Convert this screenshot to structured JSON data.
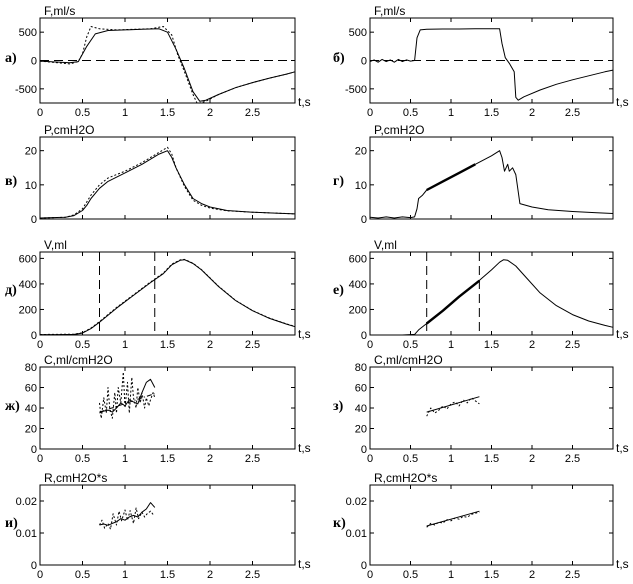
{
  "chart_data": [
    {
      "id": "a",
      "type": "line",
      "panel_label": "а)",
      "ylabel": "F,ml/s",
      "xlabel": "t,s",
      "xlim": [
        0,
        3
      ],
      "ylim": [
        -750,
        750
      ],
      "xticks": [
        "0",
        "0.5",
        "1",
        "1.5",
        "2",
        "2.5"
      ],
      "yticks": [
        500,
        0,
        -500
      ],
      "ytick_labels": [
        "500",
        "0",
        "-500"
      ],
      "dashed_hline": 0,
      "series": [
        {
          "style": "solid",
          "x": [
            0,
            0.35,
            0.45,
            0.55,
            0.65,
            0.8,
            1.0,
            1.2,
            1.4,
            1.5,
            1.6,
            1.7,
            1.8,
            1.88,
            1.95,
            2.1,
            2.3,
            2.5,
            2.7,
            2.9,
            3.0
          ],
          "y": [
            -10,
            -40,
            -20,
            250,
            470,
            530,
            540,
            550,
            560,
            500,
            200,
            -150,
            -550,
            -720,
            -700,
            -600,
            -480,
            -390,
            -310,
            -240,
            -200
          ]
        },
        {
          "style": "dotted",
          "x": [
            0,
            0.35,
            0.45,
            0.5,
            0.55,
            0.6,
            0.7,
            0.9,
            1.1,
            1.3,
            1.45,
            1.55,
            1.62,
            1.7,
            1.8,
            1.85,
            1.95,
            2.1,
            2.3,
            2.5,
            2.7,
            2.9,
            3.0
          ],
          "y": [
            -10,
            -60,
            -20,
            120,
            420,
            600,
            560,
            540,
            550,
            560,
            600,
            450,
            100,
            -200,
            -600,
            -760,
            -720,
            -600,
            -480,
            -390,
            -310,
            -240,
            -200
          ]
        }
      ]
    },
    {
      "id": "b",
      "type": "line",
      "panel_label": "б)",
      "ylabel": "F,ml/s",
      "xlabel": "t,s",
      "xlim": [
        0,
        3
      ],
      "ylim": [
        -750,
        750
      ],
      "xticks": [
        "0",
        "0.5",
        "1",
        "1.5",
        "2",
        "2.5"
      ],
      "yticks": [
        500,
        0,
        -500
      ],
      "ytick_labels": [
        "500",
        "0",
        "-500"
      ],
      "dashed_hline": 0,
      "series": [
        {
          "style": "solid",
          "x": [
            0,
            0.05,
            0.1,
            0.15,
            0.2,
            0.25,
            0.3,
            0.35,
            0.4,
            0.45,
            0.5,
            0.55,
            0.58,
            0.62,
            0.7,
            0.9,
            1.1,
            1.3,
            1.5,
            1.6,
            1.63,
            1.67,
            1.72,
            1.78,
            1.8,
            1.83,
            1.9,
            2.1,
            2.3,
            2.5,
            2.7,
            2.9,
            3.0
          ],
          "y": [
            -20,
            10,
            -30,
            20,
            -20,
            10,
            -30,
            20,
            -20,
            10,
            -10,
            0,
            400,
            540,
            550,
            555,
            555,
            560,
            560,
            560,
            300,
            50,
            -50,
            -200,
            -650,
            -700,
            -640,
            -520,
            -420,
            -340,
            -270,
            -200,
            -170
          ]
        }
      ]
    },
    {
      "id": "v",
      "type": "line",
      "panel_label": "в)",
      "ylabel": "P,cmH2O",
      "xlabel": "",
      "xlim": [
        0,
        3
      ],
      "ylim": [
        0,
        24
      ],
      "xticks": [],
      "yticks": [
        20,
        10,
        0
      ],
      "ytick_labels": [
        "20",
        "10",
        "0"
      ],
      "series": [
        {
          "style": "solid",
          "x": [
            0,
            0.3,
            0.4,
            0.5,
            0.55,
            0.6,
            0.7,
            0.8,
            1.0,
            1.2,
            1.4,
            1.5,
            1.55,
            1.6,
            1.7,
            1.8,
            1.9,
            2.0,
            2.2,
            2.5,
            2.8,
            3.0
          ],
          "y": [
            0.3,
            0.5,
            1,
            2.5,
            4,
            6,
            9,
            11,
            13.5,
            16,
            19,
            20,
            18,
            15,
            10,
            6,
            4.5,
            3.5,
            2.5,
            2,
            1.7,
            1.5
          ]
        },
        {
          "style": "dotted",
          "x": [
            0,
            0.3,
            0.4,
            0.5,
            0.55,
            0.6,
            0.7,
            0.8,
            1.0,
            1.2,
            1.4,
            1.5,
            1.55,
            1.6,
            1.7,
            1.8,
            1.9,
            2.0,
            2.2,
            2.5,
            2.8,
            3.0
          ],
          "y": [
            0.3,
            0.5,
            1.2,
            3,
            5,
            7,
            10,
            12,
            14,
            16.5,
            19.5,
            21,
            19,
            15,
            9.5,
            5.5,
            4,
            3.2,
            2.4,
            2,
            1.7,
            1.5
          ]
        }
      ]
    },
    {
      "id": "g",
      "type": "line",
      "panel_label": "г)",
      "ylabel": "P,cmH2O",
      "xlabel": "",
      "xlim": [
        0,
        3
      ],
      "ylim": [
        0,
        24
      ],
      "xticks": [],
      "yticks": [
        20,
        10,
        0
      ],
      "ytick_labels": [
        "20",
        "10",
        "0"
      ],
      "series": [
        {
          "style": "solid",
          "x": [
            0,
            0.1,
            0.2,
            0.3,
            0.4,
            0.5,
            0.55,
            0.58,
            0.6,
            0.65,
            0.7,
            0.9,
            1.1,
            1.3,
            1.5,
            1.6,
            1.63,
            1.66,
            1.7,
            1.72,
            1.76,
            1.8,
            1.85,
            2.0,
            2.2,
            2.5,
            2.8,
            3.0
          ],
          "y": [
            0.5,
            0.3,
            0.6,
            0.3,
            0.6,
            0.4,
            0.6,
            3,
            6,
            7,
            8.5,
            11,
            13.5,
            16,
            18.5,
            20,
            18,
            14,
            16,
            14,
            15,
            13,
            4.5,
            3.5,
            2.7,
            2.2,
            1.8,
            1.6
          ]
        },
        {
          "style": "bold",
          "x": [
            0.7,
            0.9,
            1.1,
            1.3
          ],
          "y": [
            8.5,
            11,
            13.5,
            16
          ]
        }
      ]
    },
    {
      "id": "d",
      "type": "line",
      "panel_label": "д)",
      "ylabel": "V,ml",
      "xlabel": "t,s",
      "xlim": [
        0,
        3
      ],
      "ylim": [
        0,
        650
      ],
      "xticks": [
        "0",
        "0.5",
        "1",
        "1.5",
        "2",
        "2.5"
      ],
      "yticks": [
        600,
        400,
        200,
        0
      ],
      "ytick_labels": [
        "600",
        "400",
        "200",
        "0"
      ],
      "dashed_vlines": [
        0.7,
        1.35
      ],
      "series": [
        {
          "style": "solid",
          "x": [
            0,
            0.2,
            0.4,
            0.5,
            0.6,
            0.7,
            0.9,
            1.1,
            1.3,
            1.45,
            1.55,
            1.65,
            1.7,
            1.8,
            1.9,
            2.1,
            2.3,
            2.5,
            2.7,
            2.9,
            3.0
          ],
          "y": [
            3,
            3,
            5,
            15,
            50,
            100,
            210,
            310,
            410,
            480,
            550,
            585,
            590,
            560,
            510,
            380,
            270,
            190,
            130,
            85,
            65
          ]
        },
        {
          "style": "dotted",
          "x": [
            0,
            0.4,
            0.5,
            0.6,
            0.7,
            0.9,
            1.1,
            1.3,
            1.45,
            1.55,
            1.65,
            1.7,
            1.8,
            1.9,
            2.1,
            2.3,
            2.5,
            2.7,
            2.9,
            3.0
          ],
          "y": [
            4,
            6,
            18,
            55,
            105,
            215,
            315,
            415,
            485,
            555,
            588,
            592,
            562,
            512,
            382,
            272,
            192,
            132,
            87,
            67
          ]
        }
      ]
    },
    {
      "id": "e",
      "type": "line",
      "panel_label": "е)",
      "ylabel": "V,ml",
      "xlabel": "t,s",
      "xlim": [
        0,
        3
      ],
      "ylim": [
        0,
        650
      ],
      "xticks": [
        "0",
        "0.5",
        "1",
        "1.5",
        "2",
        "2.5"
      ],
      "yticks": [
        600,
        400,
        200,
        0
      ],
      "ytick_labels": [
        "600",
        "400",
        "200",
        "0"
      ],
      "dashed_vlines": [
        0.7,
        1.35
      ],
      "series": [
        {
          "style": "solid",
          "x": [
            0,
            0.2,
            0.4,
            0.55,
            0.6,
            0.7,
            0.9,
            1.1,
            1.3,
            1.5,
            1.6,
            1.65,
            1.7,
            1.8,
            1.9,
            2.1,
            2.3,
            2.5,
            2.7,
            2.9,
            3.0
          ],
          "y": [
            0,
            0,
            0,
            5,
            40,
            90,
            190,
            300,
            400,
            510,
            570,
            590,
            585,
            540,
            470,
            330,
            230,
            160,
            110,
            75,
            60
          ]
        },
        {
          "style": "bold",
          "x": [
            0.7,
            0.9,
            1.1,
            1.35
          ],
          "y": [
            90,
            190,
            300,
            425
          ]
        }
      ]
    },
    {
      "id": "zh",
      "type": "line",
      "panel_label": "ж)",
      "ylabel": "C,ml/cmH2O",
      "xlabel": "t,s",
      "xlim": [
        0,
        3
      ],
      "ylim": [
        0,
        80
      ],
      "xticks": [
        "0",
        "0.5",
        "1",
        "1.5",
        "2",
        "2.5"
      ],
      "yticks": [
        80,
        60,
        40,
        20,
        0
      ],
      "ytick_labels": [
        "80",
        "60",
        "40",
        "20",
        "0"
      ],
      "series": [
        {
          "style": "solid",
          "x": [
            0.7,
            0.75,
            0.8,
            0.85,
            0.9,
            0.95,
            1.0,
            1.05,
            1.1,
            1.15,
            1.2,
            1.25,
            1.3,
            1.35
          ],
          "y": [
            35,
            37,
            38,
            36,
            40,
            45,
            42,
            48,
            46,
            44,
            55,
            65,
            68,
            60
          ]
        },
        {
          "style": "dotted",
          "x": [
            0.7,
            0.72,
            0.75,
            0.78,
            0.8,
            0.82,
            0.85,
            0.88,
            0.9,
            0.92,
            0.95,
            0.98,
            1.0,
            1.03,
            1.05,
            1.08,
            1.1,
            1.13,
            1.15,
            1.18,
            1.2,
            1.23,
            1.25,
            1.28,
            1.3,
            1.33,
            1.35
          ],
          "y": [
            45,
            30,
            50,
            35,
            60,
            40,
            30,
            55,
            35,
            60,
            45,
            75,
            40,
            65,
            35,
            70,
            50,
            40,
            60,
            45,
            55,
            40,
            50,
            42,
            48,
            55,
            50
          ]
        },
        {
          "style": "dashdot",
          "x": [
            0.7,
            1.35
          ],
          "y": [
            36,
            54
          ]
        }
      ]
    },
    {
      "id": "z",
      "type": "line",
      "panel_label": "з)",
      "ylabel": "C,ml/cmH2O",
      "xlabel": "t,s",
      "xlim": [
        0,
        3
      ],
      "ylim": [
        0,
        80
      ],
      "xticks": [
        "0",
        "0.5",
        "1",
        "1.5",
        "2",
        "2.5"
      ],
      "yticks": [
        80,
        60,
        40,
        20,
        0
      ],
      "ytick_labels": [
        "80",
        "60",
        "40",
        "20",
        "0"
      ],
      "series": [
        {
          "style": "solid",
          "x": [
            0.7,
            1.35
          ],
          "y": [
            36,
            51
          ]
        },
        {
          "style": "dotted",
          "x": [
            0.7,
            0.75,
            0.8,
            0.85,
            0.9,
            0.95,
            1.0,
            1.05,
            1.1,
            1.15,
            1.2,
            1.25,
            1.3,
            1.35
          ],
          "y": [
            32,
            40,
            35,
            38,
            42,
            39,
            44,
            46,
            42,
            48,
            45,
            50,
            47,
            44
          ]
        }
      ]
    },
    {
      "id": "i",
      "type": "line",
      "panel_label": "и)",
      "ylabel": "R,cmH2O*s",
      "xlabel": "t,s",
      "xlim": [
        0,
        3
      ],
      "ylim": [
        0,
        0.025
      ],
      "xticks": [
        "0",
        "0.5",
        "1",
        "1.5",
        "2",
        "2.5"
      ],
      "yticks": [
        0.02,
        0.01,
        0
      ],
      "ytick_labels": [
        "0.02",
        "0.01",
        "0"
      ],
      "series": [
        {
          "style": "solid",
          "x": [
            0.7,
            0.75,
            0.8,
            0.85,
            0.9,
            0.95,
            1.0,
            1.05,
            1.1,
            1.15,
            1.2,
            1.25,
            1.3,
            1.35
          ],
          "y": [
            0.0125,
            0.0128,
            0.0124,
            0.013,
            0.0135,
            0.0145,
            0.014,
            0.015,
            0.0155,
            0.015,
            0.0165,
            0.0175,
            0.0195,
            0.018
          ]
        },
        {
          "style": "dotted",
          "x": [
            0.7,
            0.73,
            0.76,
            0.8,
            0.83,
            0.86,
            0.9,
            0.93,
            0.96,
            1.0,
            1.03,
            1.06,
            1.1,
            1.13,
            1.16,
            1.2,
            1.23,
            1.26,
            1.3,
            1.33,
            1.35
          ],
          "y": [
            0.0125,
            0.014,
            0.0115,
            0.013,
            0.0112,
            0.016,
            0.0125,
            0.0168,
            0.0138,
            0.0172,
            0.014,
            0.017,
            0.013,
            0.0178,
            0.0145,
            0.0165,
            0.015,
            0.016,
            0.0168,
            0.0158,
            0.016
          ]
        }
      ]
    },
    {
      "id": "k",
      "type": "line",
      "panel_label": "к)",
      "ylabel": "R,cmH2O*s",
      "xlabel": "t,s",
      "xlim": [
        0,
        3
      ],
      "ylim": [
        0,
        0.025
      ],
      "xticks": [
        "0",
        "0.5",
        "1",
        "1.5",
        "2",
        "2.5"
      ],
      "yticks": [
        0.02,
        0.01,
        0
      ],
      "ytick_labels": [
        "0.02",
        "0.01",
        "0"
      ],
      "series": [
        {
          "style": "solid",
          "x": [
            0.7,
            1.35
          ],
          "y": [
            0.0122,
            0.0168
          ]
        },
        {
          "style": "dotted",
          "x": [
            0.7,
            0.75,
            0.8,
            0.85,
            0.9,
            0.95,
            1.0,
            1.05,
            1.1,
            1.15,
            1.2,
            1.25,
            1.3,
            1.35
          ],
          "y": [
            0.0118,
            0.013,
            0.0125,
            0.0134,
            0.0131,
            0.0142,
            0.0138,
            0.0147,
            0.0143,
            0.0152,
            0.0149,
            0.0158,
            0.0162,
            0.0165
          ]
        }
      ]
    }
  ]
}
